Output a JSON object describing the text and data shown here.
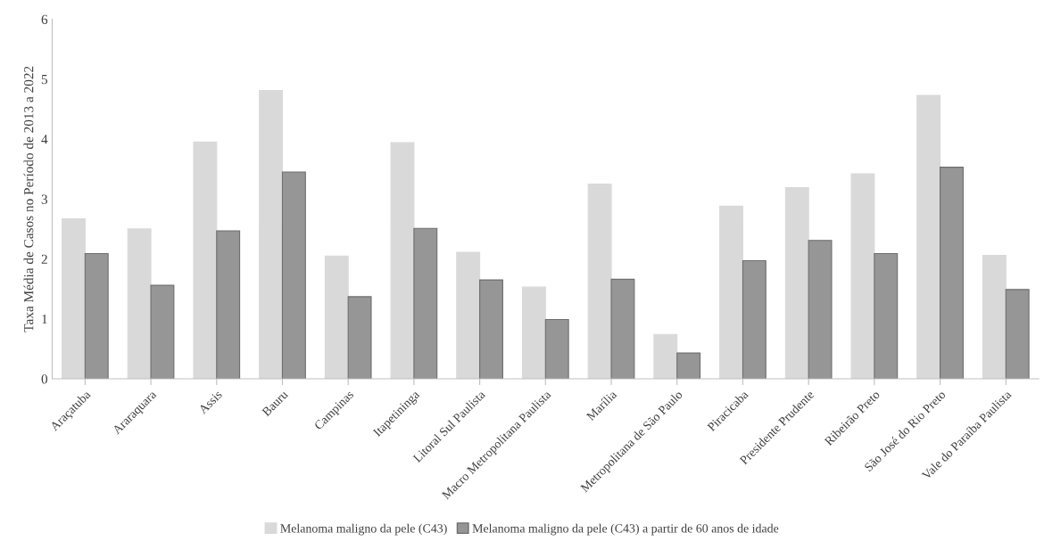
{
  "chart_data": {
    "type": "bar",
    "ylabel": "Taxa Média de Casos no Período de 2013 a 2022",
    "categories": [
      "Araçatuba",
      "Araraquara",
      "Assis",
      "Bauru",
      "Campinas",
      "Itapetininga",
      "Litoral Sul Paulista",
      "Macro Metropolitana Paulista",
      "Marília",
      "Metropolitana de São Paulo",
      "Piracicaba",
      "Presidente Prudente",
      "Ribeirão Preto",
      "São José do Rio Preto",
      "Vale do Paraíba Paulista"
    ],
    "series": [
      {
        "name": "Melanoma maligno da pele (C43)",
        "color": "#d9d9d9",
        "values": [
          2.67,
          2.5,
          3.95,
          4.81,
          2.05,
          3.94,
          2.11,
          1.53,
          3.25,
          0.74,
          2.88,
          3.19,
          3.42,
          4.73,
          2.06
        ]
      },
      {
        "name": "Melanoma maligno da pele (C43) a partir de 60 anos de idade",
        "color": "#969696",
        "values": [
          2.09,
          1.56,
          2.47,
          3.45,
          1.37,
          2.51,
          1.65,
          0.99,
          1.66,
          0.43,
          1.97,
          2.31,
          2.09,
          3.53,
          1.49
        ]
      }
    ],
    "ylim": [
      0,
      6
    ],
    "yticks": [
      0,
      1,
      2,
      3,
      4,
      5,
      6
    ],
    "grid": false,
    "legend": "bottom"
  }
}
